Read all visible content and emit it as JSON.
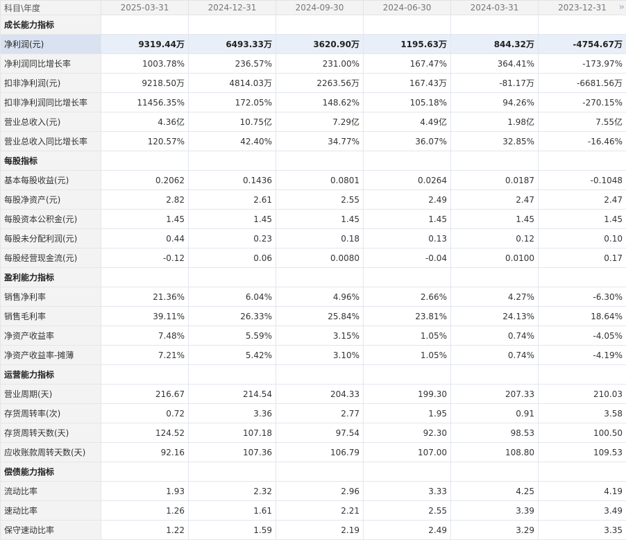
{
  "header": {
    "label": "科目\\年度",
    "periods": [
      "2025-03-31",
      "2024-12-31",
      "2024-09-30",
      "2024-06-30",
      "2024-03-31",
      "2023-12-31"
    ],
    "more_icon": "double-chevron-right-icon"
  },
  "rows": [
    {
      "type": "section",
      "label": "成长能力指标"
    },
    {
      "type": "row",
      "highlight": true,
      "label": "净利润(元)",
      "values": [
        "9319.44万",
        "6493.33万",
        "3620.90万",
        "1195.63万",
        "844.32万",
        "-4754.67万"
      ]
    },
    {
      "type": "row",
      "label": "净利润同比增长率",
      "values": [
        "1003.78%",
        "236.57%",
        "231.00%",
        "167.47%",
        "364.41%",
        "-173.97%"
      ]
    },
    {
      "type": "row",
      "label": "扣非净利润(元)",
      "values": [
        "9218.50万",
        "4814.03万",
        "2263.56万",
        "167.43万",
        "-81.17万",
        "-6681.56万"
      ]
    },
    {
      "type": "row",
      "label": "扣非净利润同比增长率",
      "values": [
        "11456.35%",
        "172.05%",
        "148.62%",
        "105.18%",
        "94.26%",
        "-270.15%"
      ]
    },
    {
      "type": "row",
      "label": "营业总收入(元)",
      "values": [
        "4.36亿",
        "10.75亿",
        "7.29亿",
        "4.49亿",
        "1.98亿",
        "7.55亿"
      ]
    },
    {
      "type": "row",
      "label": "营业总收入同比增长率",
      "values": [
        "120.57%",
        "42.40%",
        "34.77%",
        "36.07%",
        "32.85%",
        "-16.46%"
      ]
    },
    {
      "type": "section",
      "label": "每股指标"
    },
    {
      "type": "row",
      "label": "基本每股收益(元)",
      "values": [
        "0.2062",
        "0.1436",
        "0.0801",
        "0.0264",
        "0.0187",
        "-0.1048"
      ]
    },
    {
      "type": "row",
      "label": "每股净资产(元)",
      "values": [
        "2.82",
        "2.61",
        "2.55",
        "2.49",
        "2.47",
        "2.47"
      ]
    },
    {
      "type": "row",
      "label": "每股资本公积金(元)",
      "values": [
        "1.45",
        "1.45",
        "1.45",
        "1.45",
        "1.45",
        "1.45"
      ]
    },
    {
      "type": "row",
      "label": "每股未分配利润(元)",
      "values": [
        "0.44",
        "0.23",
        "0.18",
        "0.13",
        "0.12",
        "0.10"
      ]
    },
    {
      "type": "row",
      "label": "每股经营现金流(元)",
      "values": [
        "-0.12",
        "0.06",
        "0.0080",
        "-0.04",
        "0.0100",
        "0.17"
      ]
    },
    {
      "type": "section",
      "label": "盈利能力指标"
    },
    {
      "type": "row",
      "label": "销售净利率",
      "values": [
        "21.36%",
        "6.04%",
        "4.96%",
        "2.66%",
        "4.27%",
        "-6.30%"
      ]
    },
    {
      "type": "row",
      "label": "销售毛利率",
      "values": [
        "39.11%",
        "26.33%",
        "25.84%",
        "23.81%",
        "24.13%",
        "18.64%"
      ]
    },
    {
      "type": "row",
      "label": "净资产收益率",
      "values": [
        "7.48%",
        "5.59%",
        "3.15%",
        "1.05%",
        "0.74%",
        "-4.05%"
      ]
    },
    {
      "type": "row",
      "label": "净资产收益率-摊薄",
      "values": [
        "7.21%",
        "5.42%",
        "3.10%",
        "1.05%",
        "0.74%",
        "-4.19%"
      ]
    },
    {
      "type": "section",
      "label": "运营能力指标"
    },
    {
      "type": "row",
      "label": "营业周期(天)",
      "values": [
        "216.67",
        "214.54",
        "204.33",
        "199.30",
        "207.33",
        "210.03"
      ]
    },
    {
      "type": "row",
      "label": "存货周转率(次)",
      "values": [
        "0.72",
        "3.36",
        "2.77",
        "1.95",
        "0.91",
        "3.58"
      ]
    },
    {
      "type": "row",
      "label": "存货周转天数(天)",
      "values": [
        "124.52",
        "107.18",
        "97.54",
        "92.30",
        "98.53",
        "100.50"
      ]
    },
    {
      "type": "row",
      "label": "应收账款周转天数(天)",
      "values": [
        "92.16",
        "107.36",
        "106.79",
        "107.00",
        "108.80",
        "109.53"
      ]
    },
    {
      "type": "section",
      "label": "偿债能力指标"
    },
    {
      "type": "row",
      "label": "流动比率",
      "values": [
        "1.93",
        "2.32",
        "2.96",
        "3.33",
        "4.25",
        "4.19"
      ]
    },
    {
      "type": "row",
      "label": "速动比率",
      "values": [
        "1.26",
        "1.61",
        "2.21",
        "2.55",
        "3.39",
        "3.49"
      ]
    },
    {
      "type": "row",
      "label": "保守速动比率",
      "values": [
        "1.22",
        "1.59",
        "2.19",
        "2.49",
        "3.29",
        "3.35"
      ]
    }
  ]
}
